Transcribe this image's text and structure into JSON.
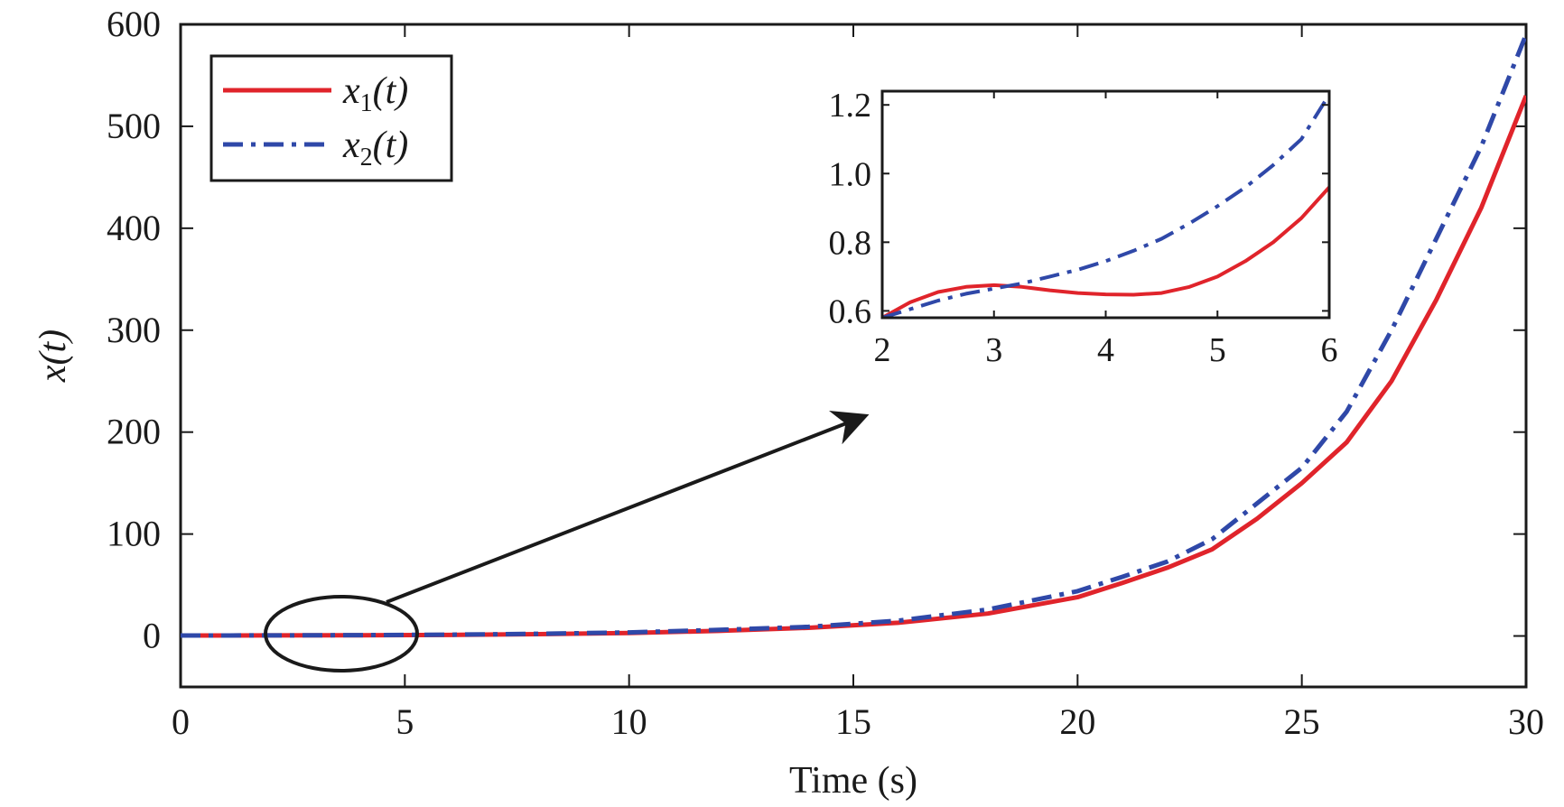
{
  "chart_data": [
    {
      "type": "line",
      "xlabel": "Time (s)",
      "ylabel": "x(t)",
      "xlim": [
        0,
        30
      ],
      "ylim": [
        -50,
        600
      ],
      "xticks": [
        "0",
        "5",
        "10",
        "15",
        "20",
        "25",
        "30"
      ],
      "yticks": [
        "0",
        "100",
        "200",
        "300",
        "400",
        "500",
        "600"
      ],
      "grid": false,
      "legend_position": "top-left",
      "x": [
        0,
        2,
        4,
        6,
        8,
        10,
        12,
        14,
        16,
        18,
        20,
        21,
        22,
        23,
        24,
        25,
        26,
        27,
        28,
        29,
        30
      ],
      "series": [
        {
          "name": "x1(t)",
          "legend_base": "x",
          "legend_sub": "1",
          "legend_tail": "(t)",
          "color": "#e0242b",
          "style": "solid",
          "values": [
            0.5,
            0.6,
            0.7,
            1.0,
            1.8,
            3,
            5,
            8,
            13,
            22,
            38,
            52,
            67,
            85,
            115,
            150,
            190,
            250,
            330,
            420,
            530
          ]
        },
        {
          "name": "x2(t)",
          "legend_base": "x",
          "legend_sub": "2",
          "legend_tail": "(t)",
          "color": "#2f48a8",
          "style": "dash-dot",
          "values": [
            0.5,
            0.6,
            0.8,
            1.3,
            2.2,
            3.5,
            6,
            9,
            15,
            26,
            44,
            58,
            73,
            95,
            130,
            165,
            220,
            300,
            390,
            480,
            590
          ]
        }
      ]
    },
    {
      "type": "line",
      "role": "inset",
      "xlim": [
        2,
        6
      ],
      "ylim": [
        0.58,
        1.24
      ],
      "xticks": [
        "2",
        "3",
        "4",
        "5",
        "6"
      ],
      "yticks": [
        "0.6",
        "0.8",
        "1.0",
        "1.2"
      ],
      "grid": false,
      "x": [
        2,
        2.25,
        2.5,
        2.75,
        3,
        3.25,
        3.5,
        3.75,
        4,
        4.25,
        4.5,
        4.75,
        5,
        5.25,
        5.5,
        5.75,
        6
      ],
      "series": [
        {
          "name": "x1(t)",
          "color": "#e0242b",
          "style": "solid",
          "values": [
            0.58,
            0.625,
            0.655,
            0.67,
            0.675,
            0.67,
            0.66,
            0.652,
            0.648,
            0.647,
            0.652,
            0.67,
            0.7,
            0.745,
            0.8,
            0.87,
            0.96
          ]
        },
        {
          "name": "x2(t)",
          "color": "#2f48a8",
          "style": "dash-dot",
          "values": [
            0.58,
            0.605,
            0.63,
            0.65,
            0.665,
            0.68,
            0.7,
            0.72,
            0.745,
            0.775,
            0.81,
            0.855,
            0.905,
            0.96,
            1.025,
            1.1,
            1.23
          ]
        }
      ]
    }
  ]
}
